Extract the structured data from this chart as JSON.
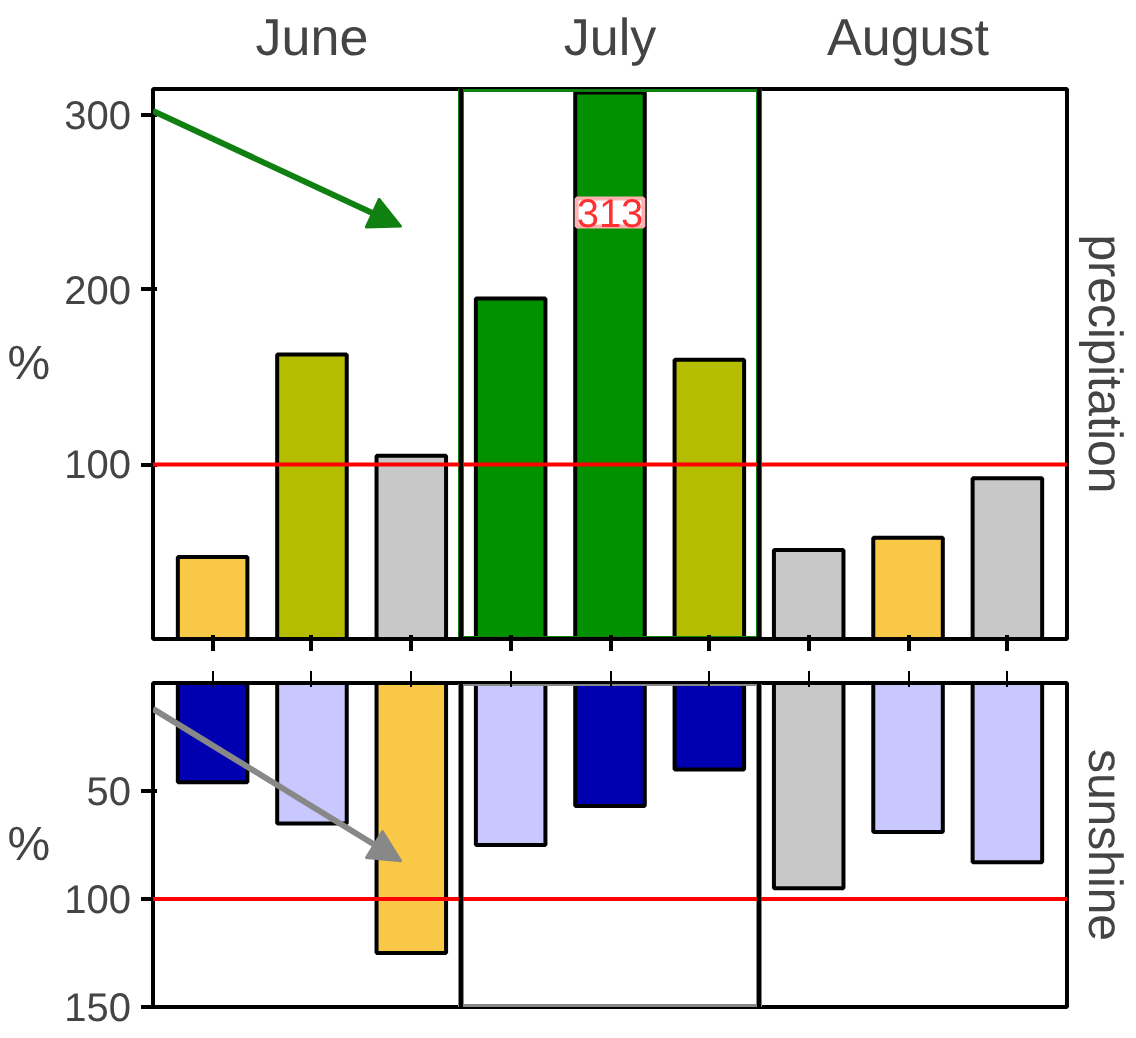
{
  "chart_data": [
    {
      "type": "bar",
      "categories": [
        null,
        null,
        null,
        null,
        null,
        null,
        null,
        null,
        null
      ],
      "annotations": [
        "June",
        "July",
        "August"
      ],
      "ylabel": "%",
      "y2label": "precipitation",
      "values": [
        47,
        163,
        105,
        195,
        313,
        160,
        51,
        58,
        92
      ],
      "colors": [
        "#f9c846",
        "#b5bd00",
        "#c8c8c8",
        "#009000",
        "#009000",
        "#b5bd00",
        "#c8c8c8",
        "#f9c846",
        "#c8c8c8"
      ],
      "value_labels": [
        null,
        null,
        null,
        null,
        "313",
        null,
        null,
        null,
        null
      ],
      "ylim": [
        0,
        315
      ],
      "yticks": [
        100,
        200,
        300
      ],
      "tick_labels": "y",
      "grid": false,
      "ref_lines": [
        {
          "axis": "y",
          "value": 100,
          "color": "#ff0000"
        }
      ]
    },
    {
      "type": "bar",
      "categories": [
        null,
        null,
        null,
        null,
        null,
        null,
        null,
        null,
        null
      ],
      "ylabel": "%",
      "y2label": "sunshine",
      "values": [
        46,
        65,
        125,
        75,
        57,
        40,
        95,
        69,
        83
      ],
      "colors": [
        "#0000b0",
        "#c8c8ff",
        "#f9c846",
        "#c8c8ff",
        "#0000b0",
        "#0000b0",
        "#c8c8c8",
        "#c8c8ff",
        "#c8c8ff"
      ],
      "ylim": [
        150,
        0
      ],
      "yticks": [
        50,
        100,
        150
      ],
      "tick_labels": "y",
      "grid": false,
      "ref_lines": [
        {
          "axis": "y",
          "value": 100,
          "color": "#ff0000"
        }
      ]
    }
  ]
}
